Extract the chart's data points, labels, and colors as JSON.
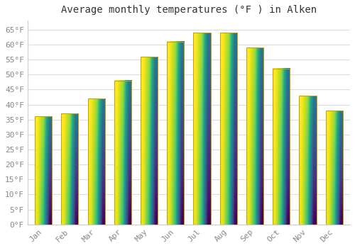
{
  "title": "Average monthly temperatures (°F ) in Alken",
  "months": [
    "Jan",
    "Feb",
    "Mar",
    "Apr",
    "May",
    "Jun",
    "Jul",
    "Aug",
    "Sep",
    "Oct",
    "Nov",
    "Dec"
  ],
  "values": [
    36,
    37,
    42,
    48,
    56,
    61,
    64,
    64,
    59,
    52,
    43,
    38
  ],
  "bar_color_bottom": "#F5A800",
  "bar_color_top": "#FFD966",
  "bar_edge_color": "#C8A000",
  "ylim": [
    0,
    68
  ],
  "yticks": [
    0,
    5,
    10,
    15,
    20,
    25,
    30,
    35,
    40,
    45,
    50,
    55,
    60,
    65
  ],
  "ytick_labels": [
    "0°F",
    "5°F",
    "10°F",
    "15°F",
    "20°F",
    "25°F",
    "30°F",
    "35°F",
    "40°F",
    "45°F",
    "50°F",
    "55°F",
    "60°F",
    "65°F"
  ],
  "background_color": "#FFFFFF",
  "grid_color": "#DDDDDD",
  "title_fontsize": 10,
  "tick_fontsize": 8,
  "tick_color": "#888888",
  "font_family": "monospace",
  "bar_width": 0.65
}
